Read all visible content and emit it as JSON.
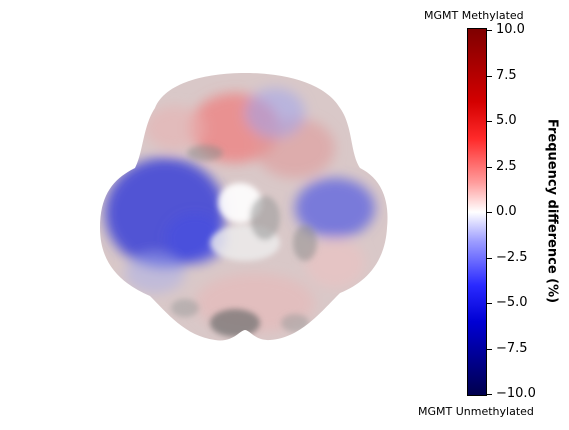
{
  "labels": {
    "top": "MGMT Methylated",
    "bottom": "MGMT Unmethylated",
    "colorbar_title": "Frequency difference (%)"
  },
  "colorbar": {
    "min": -10.0,
    "max": 10.0,
    "ticks": [
      "10.0",
      "7.5",
      "5.0",
      "2.5",
      "0.0",
      "−2.5",
      "−5.0",
      "−7.5",
      "−10.0"
    ],
    "colormap": "seismic",
    "colors": {
      "max": "#7f0000",
      "mid": "#ffffff",
      "min": "#00004d"
    }
  }
}
